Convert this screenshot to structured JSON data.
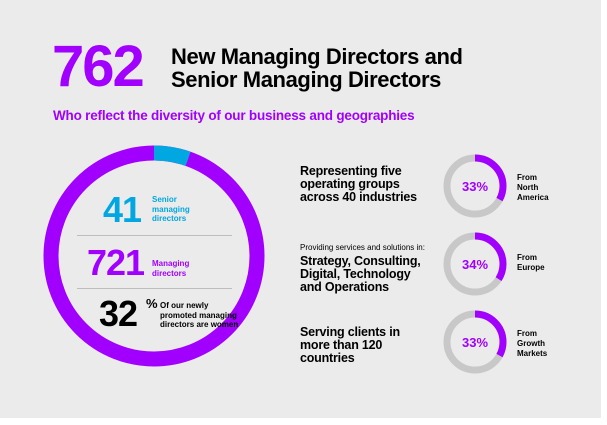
{
  "headline": {
    "number": "762",
    "title_line1": "New Managing Directors and",
    "title_line2": "Senior Managing Directors",
    "subtitle": "Who reflect the diversity of our business and geographies"
  },
  "ring": {
    "senior_count": 41,
    "md_count": 721,
    "colors": {
      "senior": "#00a7e1",
      "md": "#a100ff"
    }
  },
  "stats": {
    "senior": {
      "number": "41",
      "label_l1": "Senior",
      "label_l2": "managing",
      "label_l3": "directors"
    },
    "md": {
      "number": "721",
      "label_l1": "Managing",
      "label_l2": "directors"
    },
    "women": {
      "number": "32",
      "percent_sign": "%",
      "label_l1": "Of our newly",
      "label_l2": "promoted managing",
      "label_l3": "directors are women"
    }
  },
  "right": {
    "block1": {
      "l1": "Representing five",
      "l2": "operating groups",
      "l3": "across 40 industries"
    },
    "block2": {
      "small": "Providing services and solutions in:",
      "l1": "Strategy, Consulting,",
      "l2": "Digital, Technology",
      "l3": "and Operations"
    },
    "block3": {
      "l1": "Serving clients in",
      "l2": "more than 120",
      "l3": "countries"
    },
    "donuts": [
      {
        "percent_text": "33%",
        "value": 0.33,
        "label_l1": "From",
        "label_l2": "North",
        "label_l3": "America"
      },
      {
        "percent_text": "34%",
        "value": 0.34,
        "label_l1": "From",
        "label_l2": "Europe",
        "label_l3": ""
      },
      {
        "percent_text": "33%",
        "value": 0.33,
        "label_l1": "From",
        "label_l2": "Growth",
        "label_l3": "Markets"
      }
    ],
    "colors": {
      "fill": "#a100ff",
      "track": "#c8c8c8"
    }
  }
}
